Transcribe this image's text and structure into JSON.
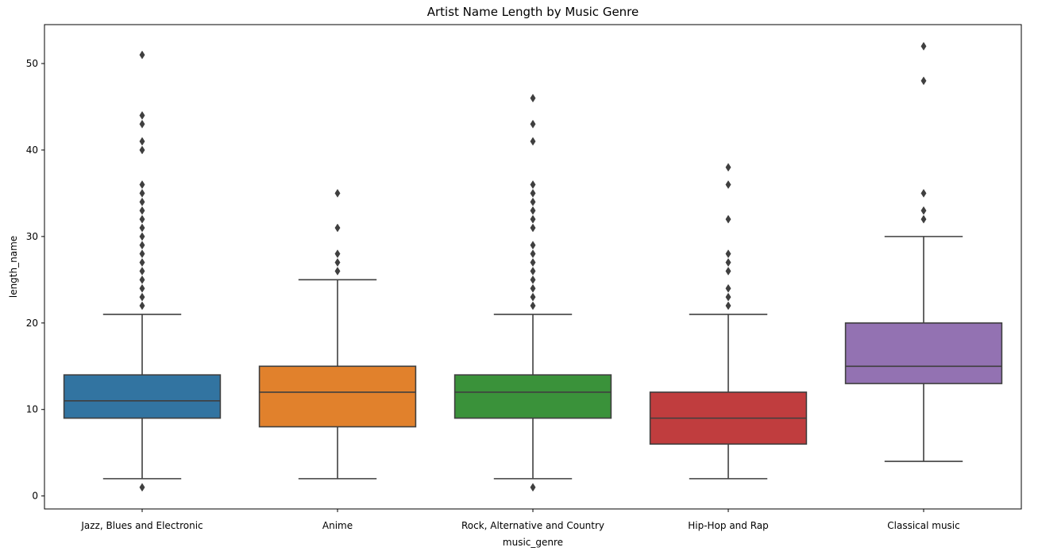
{
  "chart_data": {
    "type": "box",
    "title": "Artist Name Length by Music Genre",
    "xlabel": "music_genre",
    "ylabel": "length_name",
    "ylim": [
      -1.5,
      54.5
    ],
    "yticks": [
      0,
      10,
      20,
      30,
      40,
      50
    ],
    "grid": false,
    "categories": [
      "Jazz, Blues and Electronic",
      "Anime",
      "Rock, Alternative and Country",
      "Hip-Hop and Rap",
      "Classical music"
    ],
    "series": [
      {
        "category": "Jazz, Blues and Electronic",
        "color": "#3274a1",
        "whisker_low": 2,
        "q1": 9,
        "median": 11,
        "q3": 14,
        "whisker_high": 21,
        "outliers": [
          1,
          22,
          23,
          24,
          25,
          26,
          27,
          28,
          29,
          30,
          31,
          32,
          33,
          34,
          35,
          36,
          40,
          41,
          43,
          44,
          51
        ]
      },
      {
        "category": "Anime",
        "color": "#e1812c",
        "whisker_low": 2,
        "q1": 8,
        "median": 12,
        "q3": 15,
        "whisker_high": 25,
        "outliers": [
          26,
          27,
          28,
          31,
          35
        ]
      },
      {
        "category": "Rock, Alternative and Country",
        "color": "#3a923a",
        "whisker_low": 2,
        "q1": 9,
        "median": 12,
        "q3": 14,
        "whisker_high": 21,
        "outliers": [
          1,
          22,
          23,
          24,
          25,
          26,
          27,
          28,
          29,
          31,
          32,
          33,
          34,
          35,
          36,
          41,
          43,
          46
        ]
      },
      {
        "category": "Hip-Hop and Rap",
        "color": "#c03d3e",
        "whisker_low": 2,
        "q1": 6,
        "median": 9,
        "q3": 12,
        "whisker_high": 21,
        "outliers": [
          22,
          23,
          24,
          26,
          27,
          28,
          32,
          36,
          38
        ]
      },
      {
        "category": "Classical music",
        "color": "#9372b2",
        "whisker_low": 4,
        "q1": 13,
        "median": 15,
        "q3": 20,
        "whisker_high": 30,
        "outliers": [
          32,
          33,
          35,
          48,
          52
        ]
      }
    ]
  }
}
